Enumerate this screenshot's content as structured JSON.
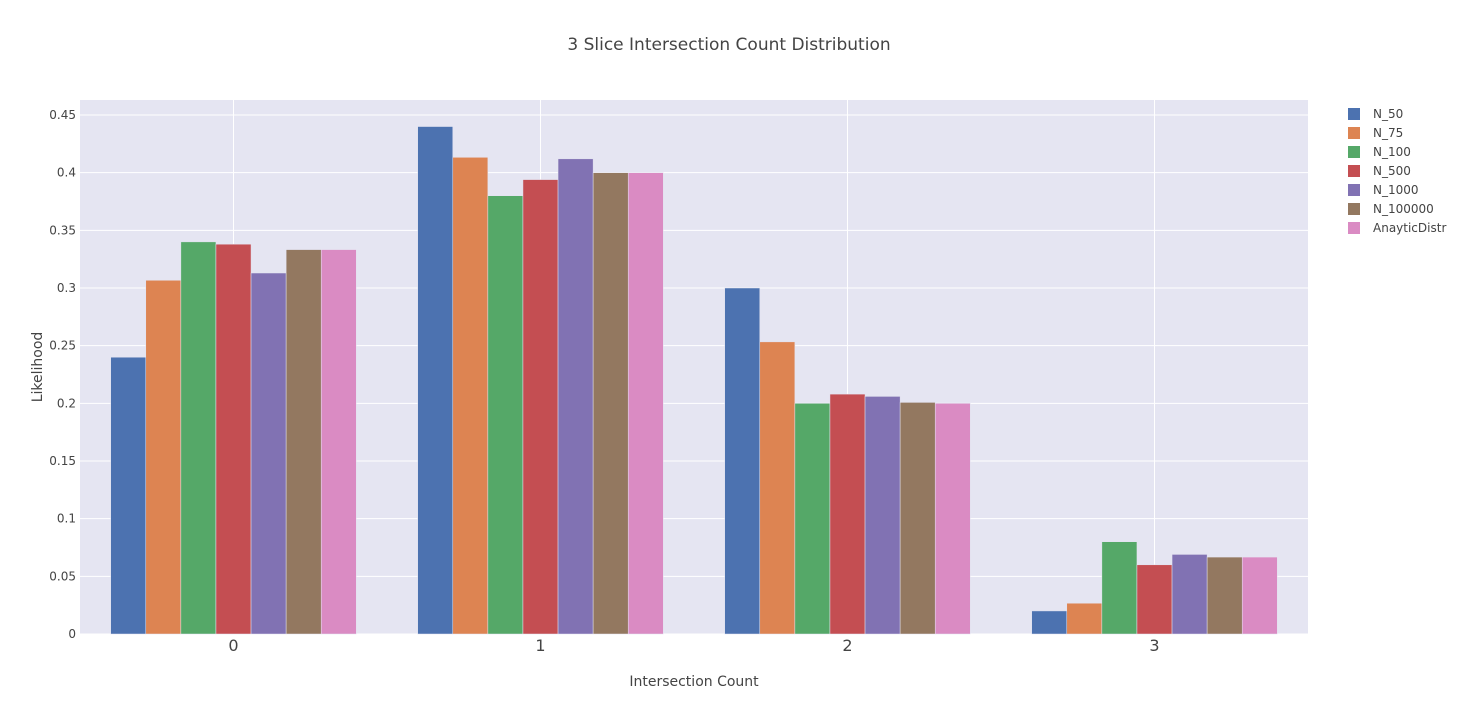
{
  "chart_data": {
    "type": "bar",
    "title": "3 Slice Intersection Count Distribution",
    "xlabel": "Intersection Count",
    "ylabel": "Likelihood",
    "categories": [
      "0",
      "1",
      "2",
      "3"
    ],
    "ylim": [
      0,
      0.45
    ],
    "yticks": [
      0,
      0.05,
      0.1,
      0.15,
      0.2,
      0.25,
      0.3,
      0.35,
      0.4,
      0.45
    ],
    "ytick_labels": [
      "0",
      "0.05",
      "0.1",
      "0.15",
      "0.2",
      "0.25",
      "0.3",
      "0.35",
      "0.4",
      "0.45"
    ],
    "grid": true,
    "legend_position": "top-right",
    "series": [
      {
        "name": "N_50",
        "color": "#4c72b0",
        "values": [
          0.24,
          0.44,
          0.3,
          0.02
        ]
      },
      {
        "name": "N_75",
        "color": "#dd8452",
        "values": [
          0.3067,
          0.4133,
          0.2533,
          0.0267
        ]
      },
      {
        "name": "N_100",
        "color": "#55a868",
        "values": [
          0.34,
          0.38,
          0.2,
          0.08
        ]
      },
      {
        "name": "N_500",
        "color": "#c44e52",
        "values": [
          0.338,
          0.394,
          0.208,
          0.06
        ]
      },
      {
        "name": "N_1000",
        "color": "#8172b3",
        "values": [
          0.313,
          0.412,
          0.206,
          0.069
        ]
      },
      {
        "name": "N_100000",
        "color": "#937860",
        "values": [
          0.3333,
          0.4,
          0.2008,
          0.0667
        ]
      },
      {
        "name": "AnayticDistr",
        "color": "#da8bc3",
        "values": [
          0.3333,
          0.4,
          0.2,
          0.0667
        ]
      }
    ]
  }
}
